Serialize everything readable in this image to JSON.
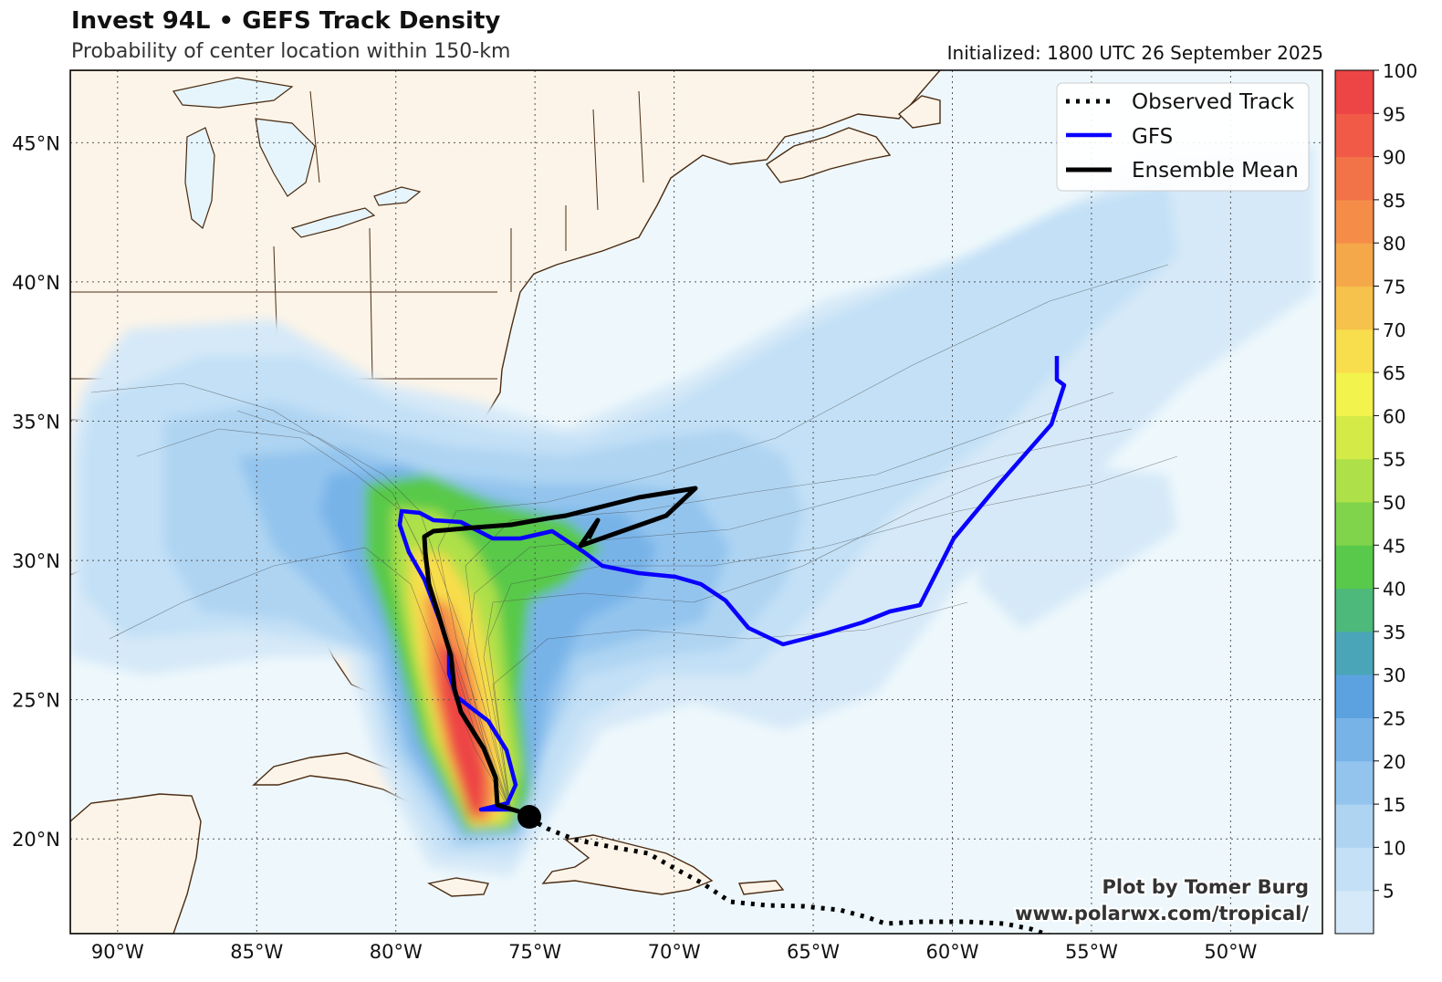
{
  "header": {
    "title": "Invest 94L • GEFS Track Density",
    "subtitle": "Probability of center location within 150-km",
    "initialized": "Initialized: 1800 UTC 26 September 2025"
  },
  "map": {
    "lat_labels": [
      "45°N",
      "40°N",
      "35°N",
      "30°N",
      "25°N",
      "20°N"
    ],
    "lon_labels": [
      "90°W",
      "85°W",
      "80°W",
      "75°W",
      "70°W",
      "65°W",
      "60°W",
      "55°W",
      "50°W"
    ],
    "extent": {
      "lon_min": -91.7,
      "lon_max": -46.7,
      "lat_min": 16.6,
      "lat_max": 47.6
    }
  },
  "legend": {
    "observed": "Observed Track",
    "gfs": "GFS",
    "mean": "Ensemble Mean"
  },
  "colorbar": {
    "ticks": [
      "5",
      "10",
      "15",
      "20",
      "25",
      "30",
      "35",
      "40",
      "45",
      "50",
      "55",
      "60",
      "65",
      "70",
      "75",
      "80",
      "85",
      "90",
      "95",
      "100"
    ],
    "colors": [
      "#d6e9f8",
      "#c3e0f6",
      "#aed4f2",
      "#93c4ee",
      "#78b3e8",
      "#5ca2e0",
      "#4ba5b9",
      "#4db97b",
      "#58c94a",
      "#7fd44b",
      "#aee049",
      "#d4ea47",
      "#f2f34c",
      "#f8dd4c",
      "#f6c24b",
      "#f5a84a",
      "#f58d49",
      "#f27348",
      "#f05a47",
      "#ed4545"
    ]
  },
  "tracks": {
    "observed_color": "#000000",
    "gfs_color": "#0a00ff",
    "mean_color": "#000000"
  },
  "credit": {
    "line1": "Plot by Tomer Burg",
    "line2": "www.polarwx.com/tropical/"
  }
}
